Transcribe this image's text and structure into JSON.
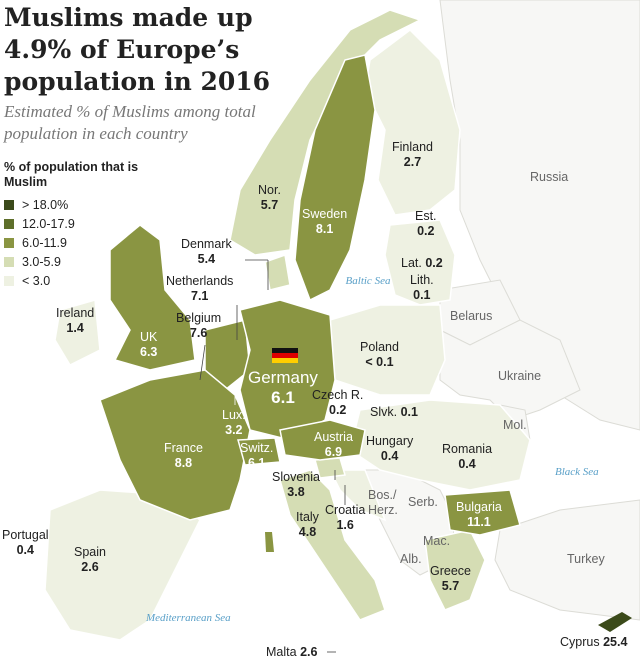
{
  "title": "Muslims made up 4.9% of Europe’s population in 2016",
  "subtitle": "Estimated % of Muslims among total population in each country",
  "legend": {
    "title": "% of population that is Muslim",
    "items": [
      {
        "label": "> 18.0%",
        "color": "#3b4a1a"
      },
      {
        "label": "12.0-17.9",
        "color": "#5e6f2a"
      },
      {
        "label": "6.0-11.9",
        "color": "#8a9542"
      },
      {
        "label": "3.0-5.9",
        "color": "#d5ddb4"
      },
      {
        "label": "< 3.0",
        "color": "#eef1e2"
      }
    ]
  },
  "countries": {
    "finland": {
      "name": "Finland",
      "value": "2.7"
    },
    "norway": {
      "name": "Nor.",
      "value": "5.7"
    },
    "sweden": {
      "name": "Sweden",
      "value": "8.1"
    },
    "estonia": {
      "name": "Est.",
      "value": "0.2"
    },
    "latvia": {
      "name": "Lat.",
      "value": "0.2"
    },
    "lithuania": {
      "name": "Lith.",
      "value": "0.1"
    },
    "denmark": {
      "name": "Denmark",
      "value": "5.4"
    },
    "netherlands": {
      "name": "Netherlands",
      "value": "7.1"
    },
    "ireland": {
      "name": "Ireland",
      "value": "1.4"
    },
    "uk": {
      "name": "UK",
      "value": "6.3"
    },
    "belgium": {
      "name": "Belgium",
      "value": "7.6"
    },
    "germany": {
      "name": "Germany",
      "value": "6.1"
    },
    "poland": {
      "name": "Poland",
      "value": "< 0.1"
    },
    "czech": {
      "name": "Czech R.",
      "value": "0.2"
    },
    "slovakia": {
      "name": "Slvk.",
      "value": "0.1"
    },
    "luxembourg": {
      "name": "Lux.",
      "value": "3.2"
    },
    "france": {
      "name": "France",
      "value": "8.8"
    },
    "switzerland": {
      "name": "Switz.",
      "value": "6.1"
    },
    "austria": {
      "name": "Austria",
      "value": "6.9"
    },
    "hungary": {
      "name": "Hungary",
      "value": "0.4"
    },
    "romania": {
      "name": "Romania",
      "value": "0.4"
    },
    "slovenia": {
      "name": "Slovenia",
      "value": "3.8"
    },
    "croatia": {
      "name": "Croatia",
      "value": "1.6"
    },
    "italy": {
      "name": "Italy",
      "value": "4.8"
    },
    "bulgaria": {
      "name": "Bulgaria",
      "value": "11.1"
    },
    "portugal": {
      "name": "Portugal",
      "value": "0.4"
    },
    "spain": {
      "name": "Spain",
      "value": "2.6"
    },
    "greece": {
      "name": "Greece",
      "value": "5.7"
    },
    "malta": {
      "name": "Malta",
      "value": "2.6"
    },
    "cyprus": {
      "name": "Cyprus",
      "value": "25.4"
    }
  },
  "non_data_countries": {
    "russia": "Russia",
    "belarus": "Belarus",
    "ukraine": "Ukraine",
    "moldova": "Mol.",
    "bosnia": "Bos./ Herz.",
    "serbia": "Serb.",
    "macedonia": "Mac.",
    "albania": "Alb.",
    "turkey": "Turkey"
  },
  "seas": {
    "baltic": "Baltic Sea",
    "black": "Black Sea",
    "mediterranean": "Mediterranean Sea"
  },
  "highlight_icon": "germany-flag-icon"
}
